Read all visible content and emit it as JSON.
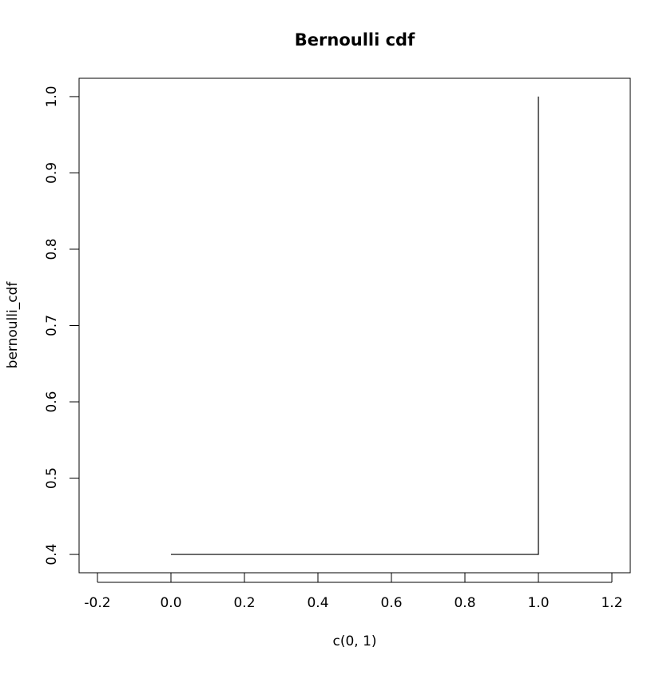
{
  "chart_data": {
    "type": "line",
    "step": "s",
    "title": "Bernoulli cdf",
    "xlabel": "c(0, 1)",
    "ylabel": "bernoulli_cdf",
    "xlim": [
      -0.25,
      1.25
    ],
    "ylim": [
      0.376,
      1.024
    ],
    "xticks": [
      -0.2,
      0.0,
      0.2,
      0.4,
      0.6,
      0.8,
      1.0,
      1.2
    ],
    "xtick_labels": [
      "-0.2",
      "0.0",
      "0.2",
      "0.4",
      "0.6",
      "0.8",
      "1.0",
      "1.2"
    ],
    "yticks": [
      0.4,
      0.5,
      0.6,
      0.7,
      0.8,
      0.9,
      1.0
    ],
    "ytick_labels": [
      "0.4",
      "0.5",
      "0.6",
      "0.7",
      "0.8",
      "0.9",
      "1.0"
    ],
    "grid": false,
    "color": "#000000",
    "series": [
      {
        "x": [
          0,
          1
        ],
        "y": [
          0.4,
          1.0
        ]
      }
    ]
  }
}
